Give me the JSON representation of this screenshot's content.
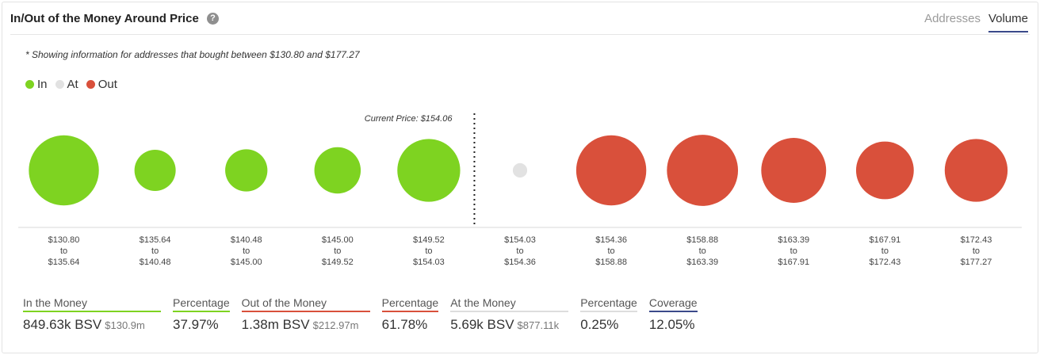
{
  "header": {
    "title": "In/Out of the Money Around Price",
    "tabs": [
      {
        "label": "Addresses",
        "active": false
      },
      {
        "label": "Volume",
        "active": true
      }
    ]
  },
  "note": "* Showing information for addresses that bought between $130.80 and $177.27",
  "legend": [
    {
      "label": "In",
      "color": "#7ed321"
    },
    {
      "label": "At",
      "color": "#e2e2e2"
    },
    {
      "label": "Out",
      "color": "#d9503b"
    }
  ],
  "chart_data": {
    "type": "scatter",
    "title": "",
    "current_price_label": "Current Price: $154.06",
    "ranges": [
      {
        "from": "$130.80",
        "to_word": "to",
        "to": "$135.64",
        "status": "in",
        "relative_size": 0.68
      },
      {
        "from": "$135.64",
        "to_word": "to",
        "to": "$140.48",
        "status": "in",
        "relative_size": 0.4
      },
      {
        "from": "$140.48",
        "to_word": "to",
        "to": "$145.00",
        "status": "in",
        "relative_size": 0.41
      },
      {
        "from": "$145.00",
        "to_word": "to",
        "to": "$149.52",
        "status": "in",
        "relative_size": 0.45
      },
      {
        "from": "$149.52",
        "to_word": "to",
        "to": "$154.03",
        "status": "in",
        "relative_size": 0.61
      },
      {
        "from": "$154.03",
        "to_word": "to",
        "to": "$154.36",
        "status": "at",
        "relative_size": 0.14
      },
      {
        "from": "$154.36",
        "to_word": "to",
        "to": "$158.88",
        "status": "out",
        "relative_size": 0.68
      },
      {
        "from": "$158.88",
        "to_word": "to",
        "to": "$163.39",
        "status": "out",
        "relative_size": 0.69
      },
      {
        "from": "$163.39",
        "to_word": "to",
        "to": "$167.91",
        "status": "out",
        "relative_size": 0.63
      },
      {
        "from": "$167.91",
        "to_word": "to",
        "to": "$172.43",
        "status": "out",
        "relative_size": 0.56
      },
      {
        "from": "$172.43",
        "to_word": "to",
        "to": "$177.27",
        "status": "out",
        "relative_size": 0.61
      }
    ],
    "colors": {
      "in": "#7ed321",
      "at": "#e2e2e2",
      "out": "#d9503b"
    }
  },
  "stats": [
    {
      "label": "In the Money",
      "value": "849.63k BSV",
      "sub": "$130.9m",
      "color": "#7ed321"
    },
    {
      "label": "Percentage",
      "value": "37.97%",
      "sub": "",
      "color": "#7ed321"
    },
    {
      "label": "Out of the Money",
      "value": "1.38m BSV",
      "sub": "$212.97m",
      "color": "#d9503b"
    },
    {
      "label": "Percentage",
      "value": "61.78%",
      "sub": "",
      "color": "#d9503b"
    },
    {
      "label": "At the Money",
      "value": "5.69k BSV",
      "sub": "$877.11k",
      "color": "#dddddd"
    },
    {
      "label": "Percentage",
      "value": "0.25%",
      "sub": "",
      "color": "#dddddd"
    },
    {
      "label": "Coverage",
      "value": "12.05%",
      "sub": "",
      "color": "#3b4a8a"
    }
  ]
}
